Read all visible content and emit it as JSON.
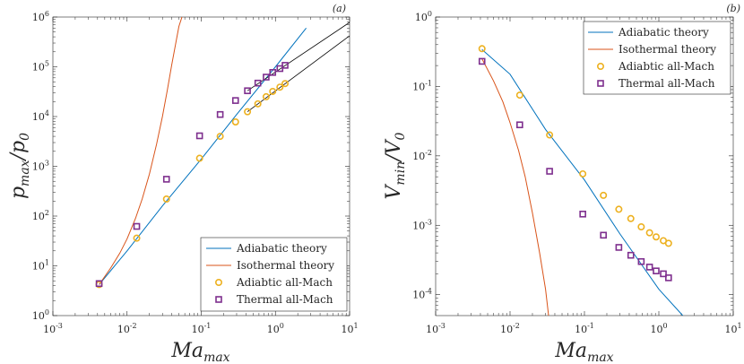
{
  "colors": {
    "adiabatic_theory": "#0072BD",
    "isothermal_theory": "#D95319",
    "adiabatic_sim": "#EDB120",
    "thermal_sim": "#7E2F8E",
    "fit_lines": "#000000"
  },
  "chart_data": [
    {
      "type": "line",
      "panel_tag": "(a)",
      "xlabel": "Ma_max",
      "xlabel_main": "Ma",
      "xlabel_sub": "max",
      "ylabel": "p_max/p_0",
      "ylabel_main_1": "p",
      "ylabel_sub_1": "max",
      "ylabel_slash": "/",
      "ylabel_main_2": "p",
      "ylabel_sub_2": "0",
      "xscale": "log",
      "yscale": "log",
      "xlim": [
        0.001,
        10
      ],
      "ylim": [
        1,
        1000000
      ],
      "legend_position": "bottom-right",
      "xticks": [
        {
          "value": 0.001,
          "base": "10",
          "exp": "-3"
        },
        {
          "value": 0.01,
          "base": "10",
          "exp": "-2"
        },
        {
          "value": 0.1,
          "base": "10",
          "exp": "-1"
        },
        {
          "value": 1,
          "base": "10",
          "exp": "0"
        },
        {
          "value": 10,
          "base": "10",
          "exp": "1"
        }
      ],
      "yticks": [
        {
          "value": 1,
          "base": "10",
          "exp": "0"
        },
        {
          "value": 10,
          "base": "10",
          "exp": "1"
        },
        {
          "value": 100,
          "base": "10",
          "exp": "2"
        },
        {
          "value": 1000,
          "base": "10",
          "exp": "3"
        },
        {
          "value": 10000,
          "base": "10",
          "exp": "4"
        },
        {
          "value": 100000,
          "base": "10",
          "exp": "5"
        },
        {
          "value": 1000000,
          "base": "10",
          "exp": "6"
        }
      ],
      "series": [
        {
          "name": "Adiabatic theory",
          "kind": "line",
          "color_key": "adiabatic_theory",
          "x": [
            0.0042,
            0.01,
            0.03,
            0.1,
            0.3,
            1,
            2.6
          ],
          "y": [
            4.2,
            20,
            160,
            1400,
            11000,
            100000,
            600000
          ]
        },
        {
          "name": "Isothermal theory",
          "kind": "line",
          "color_key": "isothermal_theory",
          "x": [
            0.0042,
            0.006,
            0.008,
            0.01,
            0.013,
            0.016,
            0.02,
            0.025,
            0.03,
            0.035,
            0.04,
            0.045,
            0.05,
            0.055
          ],
          "y": [
            4.2,
            9,
            18,
            35,
            90,
            220,
            700,
            2800,
            10000,
            35000,
            110000,
            280000,
            650000,
            1000000
          ]
        },
        {
          "name": "Adiabtic all-Mach",
          "kind": "circle",
          "color_key": "adiabatic_sim",
          "x": [
            0.0042,
            0.0135,
            0.034,
            0.095,
            0.18,
            0.29,
            0.42,
            0.58,
            0.75,
            0.92,
            1.15,
            1.35
          ],
          "y": [
            4.2,
            36,
            220,
            1450,
            4000,
            7800,
            12500,
            18000,
            25000,
            32000,
            39000,
            46000
          ]
        },
        {
          "name": "Thermal all-Mach",
          "kind": "square",
          "color_key": "thermal_sim",
          "x": [
            0.0042,
            0.0135,
            0.034,
            0.095,
            0.18,
            0.29,
            0.42,
            0.58,
            0.75,
            0.92,
            1.15,
            1.35
          ],
          "y": [
            4.4,
            62,
            550,
            4100,
            11000,
            21000,
            33000,
            47000,
            62000,
            77000,
            92000,
            107000
          ]
        },
        {
          "name": "",
          "kind": "fit",
          "color_key": "fit_lines",
          "x": [
            0.42,
            10
          ],
          "y": [
            12500,
            420000
          ]
        },
        {
          "name": "",
          "kind": "fit",
          "color_key": "fit_lines",
          "x": [
            0.42,
            10
          ],
          "y": [
            33000,
            780000
          ]
        }
      ],
      "legend": [
        "Adiabatic theory",
        "Isothermal theory",
        "Adiabtic all-Mach",
        "Thermal all-Mach"
      ]
    },
    {
      "type": "line",
      "panel_tag": "(b)",
      "xlabel": "Ma_max",
      "xlabel_main": "Ma",
      "xlabel_sub": "max",
      "ylabel": "V_min/V_0",
      "ylabel_main_1": "V",
      "ylabel_sub_1": "min",
      "ylabel_slash": "/",
      "ylabel_main_2": "V",
      "ylabel_sub_2": "0",
      "xscale": "log",
      "yscale": "log",
      "xlim": [
        0.001,
        10
      ],
      "ylim": [
        5e-05,
        1
      ],
      "legend_position": "top-right",
      "xticks": [
        {
          "value": 0.001,
          "base": "10",
          "exp": "-3"
        },
        {
          "value": 0.01,
          "base": "10",
          "exp": "-2"
        },
        {
          "value": 0.1,
          "base": "10",
          "exp": "-1"
        },
        {
          "value": 1,
          "base": "10",
          "exp": "0"
        },
        {
          "value": 10,
          "base": "10",
          "exp": "1"
        }
      ],
      "yticks": [
        {
          "value": 0.0001,
          "base": "10",
          "exp": "-4"
        },
        {
          "value": 0.001,
          "base": "10",
          "exp": "-3"
        },
        {
          "value": 0.01,
          "base": "10",
          "exp": "-2"
        },
        {
          "value": 0.1,
          "base": "10",
          "exp": "-1"
        },
        {
          "value": 1,
          "base": "10",
          "exp": "0"
        }
      ],
      "series": [
        {
          "name": "Adiabatic theory",
          "kind": "line",
          "color_key": "adiabatic_theory",
          "x": [
            0.0042,
            0.01,
            0.03,
            0.1,
            0.3,
            1,
            2.1
          ],
          "y": [
            0.34,
            0.15,
            0.024,
            0.0045,
            0.00075,
            0.00012,
            5e-05
          ]
        },
        {
          "name": "Isothermal theory",
          "kind": "line",
          "color_key": "isothermal_theory",
          "x": [
            0.0042,
            0.006,
            0.008,
            0.01,
            0.013,
            0.016,
            0.02,
            0.025,
            0.03,
            0.033
          ],
          "y": [
            0.25,
            0.12,
            0.06,
            0.03,
            0.012,
            0.005,
            0.0015,
            0.0004,
            0.00012,
            5e-05
          ]
        },
        {
          "name": "Adiabtic all-Mach",
          "kind": "circle",
          "color_key": "adiabatic_sim",
          "x": [
            0.0042,
            0.0135,
            0.034,
            0.095,
            0.18,
            0.29,
            0.42,
            0.58,
            0.75,
            0.92,
            1.15,
            1.35
          ],
          "y": [
            0.35,
            0.075,
            0.02,
            0.0055,
            0.0027,
            0.0017,
            0.00125,
            0.00095,
            0.00078,
            0.00068,
            0.0006,
            0.00055
          ]
        },
        {
          "name": "Thermal all-Mach",
          "kind": "square",
          "color_key": "thermal_sim",
          "x": [
            0.0042,
            0.0135,
            0.034,
            0.095,
            0.18,
            0.29,
            0.42,
            0.58,
            0.75,
            0.92,
            1.15,
            1.35
          ],
          "y": [
            0.23,
            0.028,
            0.006,
            0.00145,
            0.00072,
            0.00048,
            0.00037,
            0.0003,
            0.00025,
            0.00022,
            0.0002,
            0.000175
          ]
        }
      ],
      "legend": [
        "Adiabatic theory",
        "Isothermal theory",
        "Adiabtic all-Mach",
        "Thermal all-Mach"
      ]
    }
  ]
}
